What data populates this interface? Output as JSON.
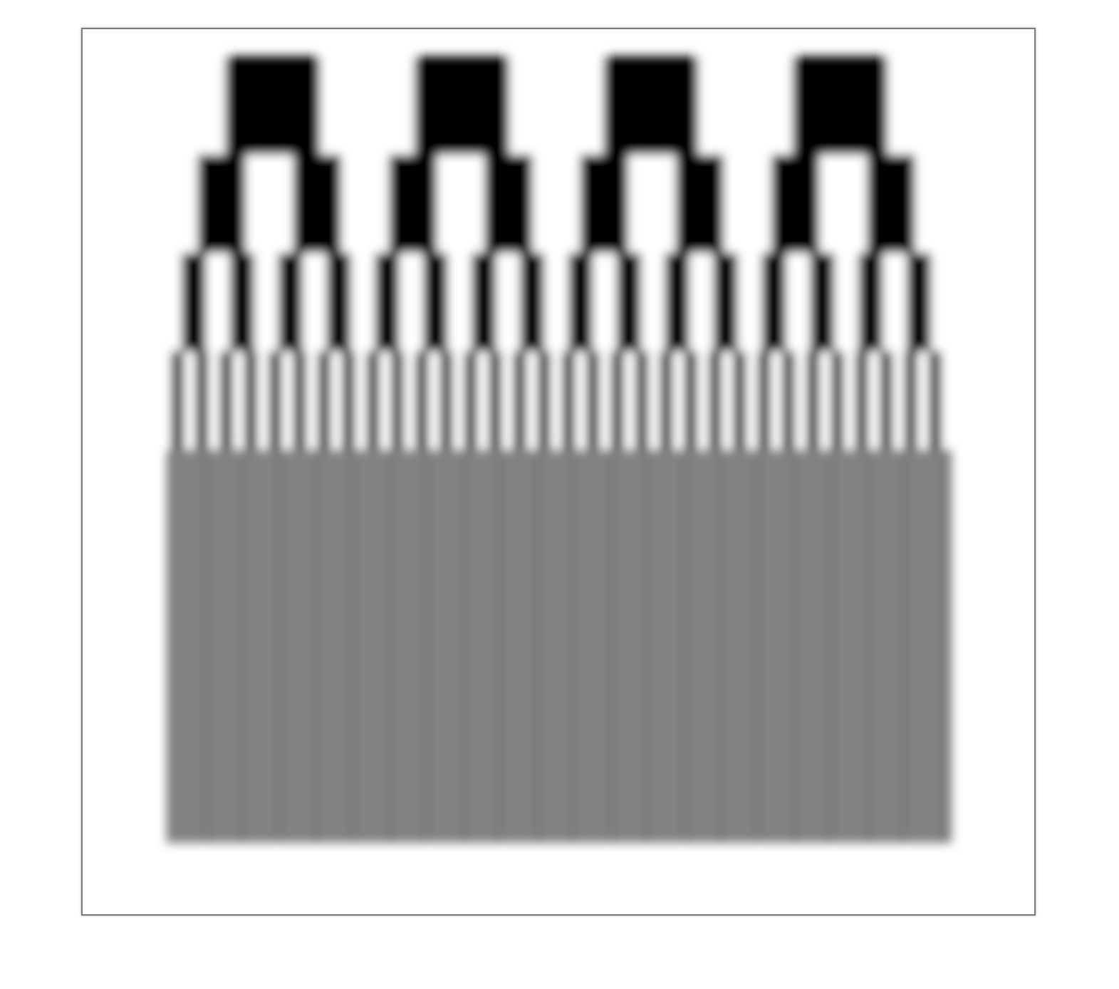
{
  "figure": {
    "kind": "resolution-test-pattern",
    "foreground_color": "#000000",
    "background_color": "#ffffff",
    "unresolved_gray": "#808080",
    "rows": [
      {
        "cycles": 4,
        "resolved": true
      },
      {
        "cycles": 8,
        "resolved": true
      },
      {
        "cycles": 16,
        "resolved": true
      },
      {
        "cycles": 32,
        "resolved": true
      },
      {
        "cycles": 64,
        "resolved": false
      },
      {
        "cycles": 128,
        "resolved": false
      },
      {
        "cycles": 256,
        "resolved": false
      },
      {
        "cycles": 512,
        "resolved": false
      }
    ]
  }
}
